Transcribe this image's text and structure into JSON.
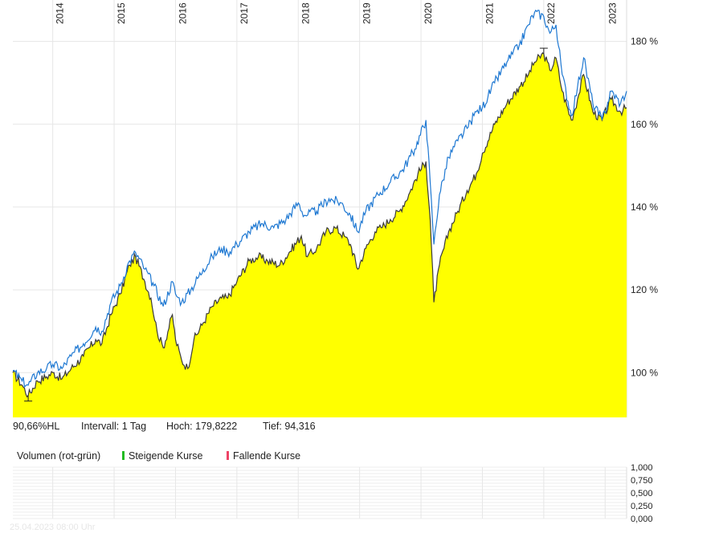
{
  "chart_data": [
    {
      "type": "area",
      "x_ticks": [
        "2014",
        "2015",
        "2016",
        "2017",
        "2018",
        "2019",
        "2020",
        "2021",
        "2022",
        "2023"
      ],
      "y_ticks": [
        "100 %",
        "120 %",
        "140 %",
        "160 %",
        "180 %"
      ],
      "y_tick_values": [
        100,
        120,
        140,
        160,
        180
      ],
      "ylim": [
        89.2,
        190
      ],
      "xlim": [
        2013.35,
        2023.35
      ],
      "grid": true,
      "series": [
        {
          "style": "area",
          "color": "#3a3a3a",
          "fill": "#ffff00",
          "points": [
            [
              2013.35,
              100
            ],
            [
              2013.5,
              97
            ],
            [
              2013.6,
              94.5
            ],
            [
              2013.75,
              98
            ],
            [
              2013.9,
              99
            ],
            [
              2014.0,
              100
            ],
            [
              2014.15,
              98.5
            ],
            [
              2014.3,
              101
            ],
            [
              2014.5,
              104
            ],
            [
              2014.7,
              108
            ],
            [
              2014.8,
              107
            ],
            [
              2014.95,
              114
            ],
            [
              2015.1,
              119
            ],
            [
              2015.25,
              126
            ],
            [
              2015.35,
              128
            ],
            [
              2015.5,
              122
            ],
            [
              2015.6,
              118
            ],
            [
              2015.7,
              110
            ],
            [
              2015.8,
              106
            ],
            [
              2015.95,
              114
            ],
            [
              2016.0,
              108
            ],
            [
              2016.1,
              103
            ],
            [
              2016.2,
              101
            ],
            [
              2016.3,
              108
            ],
            [
              2016.45,
              112
            ],
            [
              2016.6,
              116
            ],
            [
              2016.75,
              118
            ],
            [
              2016.85,
              118
            ],
            [
              2017.0,
              122
            ],
            [
              2017.2,
              127
            ],
            [
              2017.35,
              128
            ],
            [
              2017.5,
              127
            ],
            [
              2017.7,
              126
            ],
            [
              2017.85,
              129
            ],
            [
              2018.05,
              133
            ],
            [
              2018.15,
              128
            ],
            [
              2018.3,
              130
            ],
            [
              2018.45,
              134
            ],
            [
              2018.6,
              135
            ],
            [
              2018.75,
              133
            ],
            [
              2018.85,
              131
            ],
            [
              2018.97,
              125
            ],
            [
              2019.1,
              130
            ],
            [
              2019.25,
              134
            ],
            [
              2019.35,
              135
            ],
            [
              2019.5,
              137
            ],
            [
              2019.65,
              139
            ],
            [
              2019.8,
              143
            ],
            [
              2019.95,
              148
            ],
            [
              2020.08,
              151
            ],
            [
              2020.15,
              137
            ],
            [
              2020.21,
              117
            ],
            [
              2020.3,
              126
            ],
            [
              2020.45,
              134
            ],
            [
              2020.6,
              139
            ],
            [
              2020.75,
              144
            ],
            [
              2020.9,
              148
            ],
            [
              2021.0,
              153
            ],
            [
              2021.2,
              160
            ],
            [
              2021.4,
              165
            ],
            [
              2021.6,
              169
            ],
            [
              2021.75,
              172
            ],
            [
              2021.85,
              175
            ],
            [
              2022.0,
              177
            ],
            [
              2022.1,
              173
            ],
            [
              2022.2,
              176
            ],
            [
              2022.3,
              168
            ],
            [
              2022.45,
              161
            ],
            [
              2022.55,
              166
            ],
            [
              2022.65,
              172
            ],
            [
              2022.8,
              163
            ],
            [
              2022.95,
              161
            ],
            [
              2023.1,
              166
            ],
            [
              2023.25,
              163
            ],
            [
              2023.35,
              164
            ]
          ]
        },
        {
          "style": "line",
          "color": "#1e78d2",
          "points": [
            [
              2013.35,
              100.5
            ],
            [
              2013.5,
              98
            ],
            [
              2013.6,
              97
            ],
            [
              2013.75,
              100
            ],
            [
              2013.9,
              101
            ],
            [
              2014.0,
              102
            ],
            [
              2014.15,
              101
            ],
            [
              2014.3,
              104
            ],
            [
              2014.5,
              107
            ],
            [
              2014.7,
              111
            ],
            [
              2014.8,
              110
            ],
            [
              2014.95,
              117
            ],
            [
              2015.1,
              121
            ],
            [
              2015.25,
              127
            ],
            [
              2015.35,
              129
            ],
            [
              2015.5,
              125
            ],
            [
              2015.65,
              121
            ],
            [
              2015.8,
              116
            ],
            [
              2015.95,
              122
            ],
            [
              2016.0,
              119
            ],
            [
              2016.1,
              117
            ],
            [
              2016.25,
              120
            ],
            [
              2016.45,
              125
            ],
            [
              2016.6,
              128
            ],
            [
              2016.75,
              130
            ],
            [
              2016.85,
              129
            ],
            [
              2017.0,
              131
            ],
            [
              2017.2,
              134
            ],
            [
              2017.4,
              136
            ],
            [
              2017.6,
              135
            ],
            [
              2017.8,
              137
            ],
            [
              2018.0,
              141
            ],
            [
              2018.1,
              138
            ],
            [
              2018.3,
              139
            ],
            [
              2018.5,
              142
            ],
            [
              2018.7,
              141
            ],
            [
              2018.85,
              138
            ],
            [
              2018.97,
              134
            ],
            [
              2019.1,
              139
            ],
            [
              2019.3,
              143
            ],
            [
              2019.5,
              146
            ],
            [
              2019.7,
              149
            ],
            [
              2019.9,
              154
            ],
            [
              2020.08,
              161
            ],
            [
              2020.15,
              146
            ],
            [
              2020.21,
              131
            ],
            [
              2020.3,
              143
            ],
            [
              2020.45,
              152
            ],
            [
              2020.6,
              156
            ],
            [
              2020.75,
              159
            ],
            [
              2020.9,
              163
            ],
            [
              2021.0,
              164
            ],
            [
              2021.2,
              170
            ],
            [
              2021.4,
              175
            ],
            [
              2021.6,
              179
            ],
            [
              2021.75,
              184
            ],
            [
              2021.85,
              187
            ],
            [
              2022.0,
              186
            ],
            [
              2022.1,
              182
            ],
            [
              2022.2,
              184
            ],
            [
              2022.3,
              172
            ],
            [
              2022.45,
              162
            ],
            [
              2022.55,
              169
            ],
            [
              2022.65,
              176
            ],
            [
              2022.8,
              165
            ],
            [
              2022.95,
              161
            ],
            [
              2023.1,
              168
            ],
            [
              2023.25,
              165
            ],
            [
              2023.35,
              168
            ]
          ]
        }
      ]
    },
    {
      "type": "bar",
      "title": "Volumen (rot-grün)",
      "y_ticks": [
        "1,000",
        "0,750",
        "0,500",
        "0,250",
        "0,000"
      ],
      "y_tick_values": [
        1,
        0.75,
        0.5,
        0.25,
        0
      ],
      "ylim": [
        0,
        1
      ],
      "values": []
    }
  ],
  "info": {
    "scale": "90,66%HL",
    "interval": "Intervall: 1 Tag",
    "high": "Hoch: 179,8222",
    "low": "Tief:  94,316"
  },
  "volume_legend": {
    "title": "Volumen (rot-grün)",
    "rising": "Steigende Kurse",
    "falling": "Fallende Kurse",
    "rising_color": "#22bb22",
    "falling_color": "#ee4466"
  },
  "timestamp": "25.04.2023 08:00 Uhr"
}
